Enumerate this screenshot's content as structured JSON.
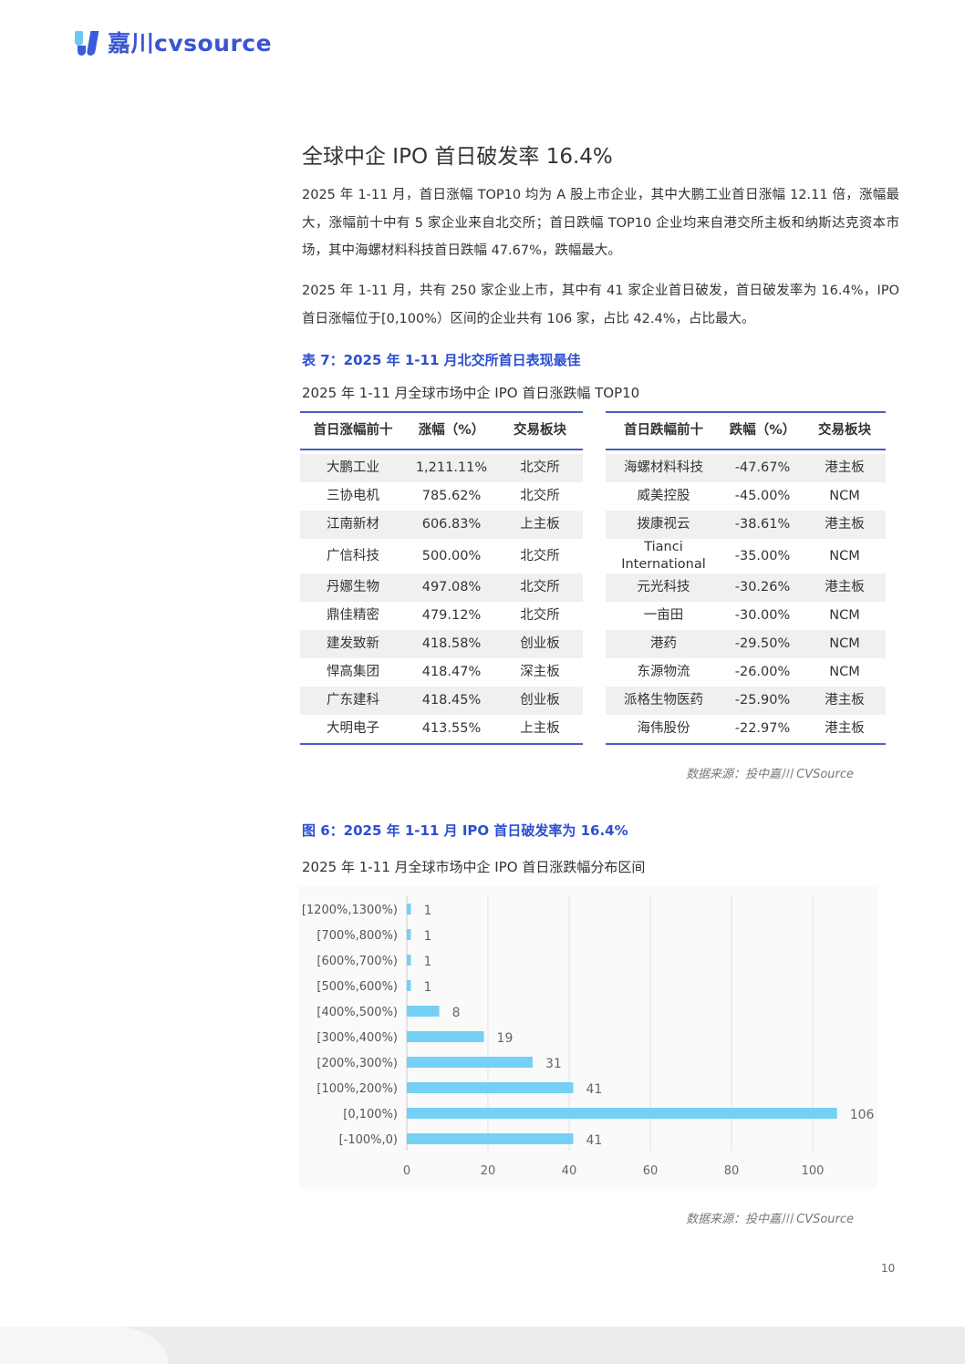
{
  "logo": {
    "text": "嘉川cvsource",
    "brand_color": "#3b55d0"
  },
  "heading": "全球中企 IPO 首日破发率 16.4%",
  "paragraphs": [
    "2025 年 1-11 月，首日涨幅 TOP10 均为 A 股上市企业，其中大鹏工业首日涨幅 12.11 倍，涨幅最大，涨幅前十中有 5 家企业来自北交所；首日跌幅 TOP10 企业均来自港交所主板和纳斯达克资本市场，其中海螺材料科技首日跌幅 47.67%，跌幅最大。",
    "2025 年 1-11 月，共有 250 家企业上市，其中有 41 家企业首日破发，首日破发率为 16.4%，IPO 首日涨幅位于[0,100%）区间的企业共有 106 家，占比 42.4%，占比最大。"
  ],
  "table": {
    "caption": "表 7：2025 年 1-11 月北交所首日表现最佳",
    "subtitle": "2025 年 1-11 月全球市场中企 IPO 首日涨跌幅 TOP10",
    "gainers": {
      "headers": [
        "首日涨幅前十",
        "涨幅（%）",
        "交易板块"
      ],
      "rows": [
        [
          "大鹏工业",
          "1,211.11%",
          "北交所"
        ],
        [
          "三协电机",
          "785.62%",
          "北交所"
        ],
        [
          "江南新材",
          "606.83%",
          "上主板"
        ],
        [
          "广信科技",
          "500.00%",
          "北交所"
        ],
        [
          "丹娜生物",
          "497.08%",
          "北交所"
        ],
        [
          "鼎佳精密",
          "479.12%",
          "北交所"
        ],
        [
          "建发致新",
          "418.58%",
          "创业板"
        ],
        [
          "悍高集团",
          "418.47%",
          "深主板"
        ],
        [
          "广东建科",
          "418.45%",
          "创业板"
        ],
        [
          "大明电子",
          "413.55%",
          "上主板"
        ]
      ]
    },
    "losers": {
      "headers": [
        "首日跌幅前十",
        "跌幅（%）",
        "交易板块"
      ],
      "rows": [
        [
          "海螺材料科技",
          "-47.67%",
          "港主板"
        ],
        [
          "威美控股",
          "-45.00%",
          "NCM"
        ],
        [
          "拨康视云",
          "-38.61%",
          "港主板"
        ],
        [
          "Tianci International",
          "-35.00%",
          "NCM"
        ],
        [
          "元光科技",
          "-30.26%",
          "港主板"
        ],
        [
          "一亩田",
          "-30.00%",
          "NCM"
        ],
        [
          "港药",
          "-29.50%",
          "NCM"
        ],
        [
          "东源物流",
          "-26.00%",
          "NCM"
        ],
        [
          "派格生物医药",
          "-25.90%",
          "港主板"
        ],
        [
          "海伟股份",
          "-22.97%",
          "港主板"
        ]
      ]
    },
    "source": "数据来源：投中嘉川 CVSource"
  },
  "figure": {
    "caption": "图 6：2025 年 1-11 月 IPO 首日破发率为 16.4%",
    "subtitle": "2025 年 1-11 月全球市场中企 IPO 首日涨跌幅分布区间",
    "source": "数据来源：投中嘉川 CVSource"
  },
  "chart_data": {
    "type": "bar",
    "orientation": "horizontal",
    "categories": [
      "[1200%,1300%)",
      "[700%,800%)",
      "[600%,700%)",
      "[500%,600%)",
      "[400%,500%)",
      "[300%,400%)",
      "[200%,300%)",
      "[100%,200%)",
      "[0,100%)",
      "[-100%,0)"
    ],
    "values": [
      1,
      1,
      1,
      1,
      8,
      19,
      31,
      41,
      106,
      41
    ],
    "xticks": [
      0,
      20,
      40,
      60,
      80,
      100
    ],
    "xlim": [
      0,
      115
    ],
    "grid": true,
    "bar_color": "#75d0f5",
    "data_labels": true
  },
  "page_number": "10"
}
